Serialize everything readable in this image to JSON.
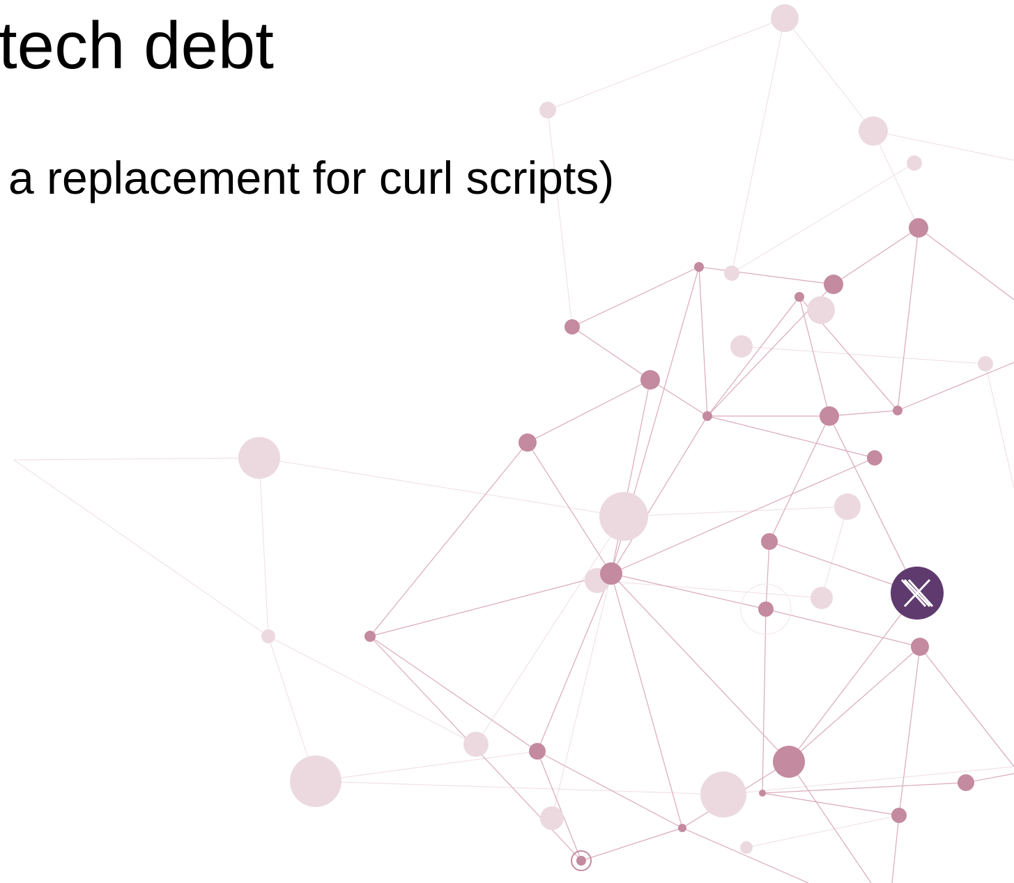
{
  "slide": {
    "title": "tech debt",
    "bullet": "a replacement for curl scripts)"
  }
}
